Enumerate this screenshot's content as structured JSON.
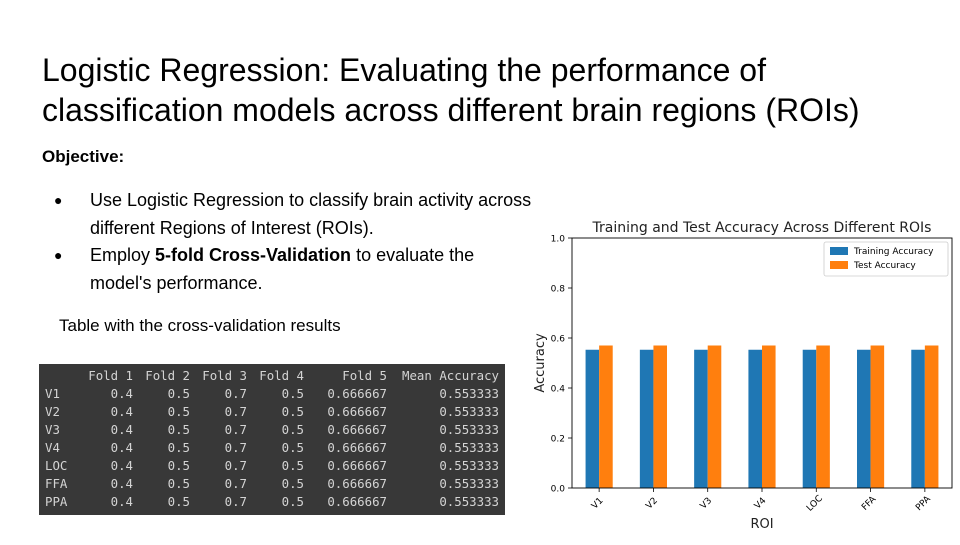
{
  "slide": {
    "title": "Logistic Regression: Evaluating the performance of classification models across different brain regions (ROIs)",
    "objective_label": "Objective:",
    "bullets": [
      {
        "text": "Use Logistic Regression to classify brain activity across different Regions of Interest (ROIs)."
      },
      {
        "pre": "Employ ",
        "bold": "5-fold Cross-Validation",
        "post": " to evaluate the model's performance."
      }
    ],
    "table_caption": "Table with the cross-validation results"
  },
  "table": {
    "headers": [
      "",
      "Fold 1",
      "Fold 2",
      "Fold 3",
      "Fold 4",
      "Fold 5",
      "Mean Accuracy"
    ],
    "rows": [
      [
        "V1",
        "0.4",
        "0.5",
        "0.7",
        "0.5",
        "0.666667",
        "0.553333"
      ],
      [
        "V2",
        "0.4",
        "0.5",
        "0.7",
        "0.5",
        "0.666667",
        "0.553333"
      ],
      [
        "V3",
        "0.4",
        "0.5",
        "0.7",
        "0.5",
        "0.666667",
        "0.553333"
      ],
      [
        "V4",
        "0.4",
        "0.5",
        "0.7",
        "0.5",
        "0.666667",
        "0.553333"
      ],
      [
        "LOC",
        "0.4",
        "0.5",
        "0.7",
        "0.5",
        "0.666667",
        "0.553333"
      ],
      [
        "FFA",
        "0.4",
        "0.5",
        "0.7",
        "0.5",
        "0.666667",
        "0.553333"
      ],
      [
        "PPA",
        "0.4",
        "0.5",
        "0.7",
        "0.5",
        "0.666667",
        "0.553333"
      ]
    ]
  },
  "colors": {
    "training": "#1f77b4",
    "test": "#ff7f0e",
    "table_bg": "#383838",
    "table_text": "#d4d4d4"
  },
  "chart_data": {
    "type": "bar",
    "title": "Training and Test Accuracy Across Different ROIs",
    "xlabel": "ROI",
    "ylabel": "Accuracy",
    "categories": [
      "V1",
      "V2",
      "V3",
      "V4",
      "LOC",
      "FFA",
      "PPA"
    ],
    "series": [
      {
        "name": "Training Accuracy",
        "values": [
          0.553,
          0.553,
          0.553,
          0.553,
          0.553,
          0.553,
          0.553
        ]
      },
      {
        "name": "Test Accuracy",
        "values": [
          0.57,
          0.57,
          0.57,
          0.57,
          0.57,
          0.57,
          0.57
        ]
      }
    ],
    "ylim": [
      0.0,
      1.0
    ],
    "yticks": [
      "0.0",
      "0.2",
      "0.4",
      "0.6",
      "0.8",
      "1.0"
    ],
    "grid": false,
    "legend": "top-right"
  }
}
